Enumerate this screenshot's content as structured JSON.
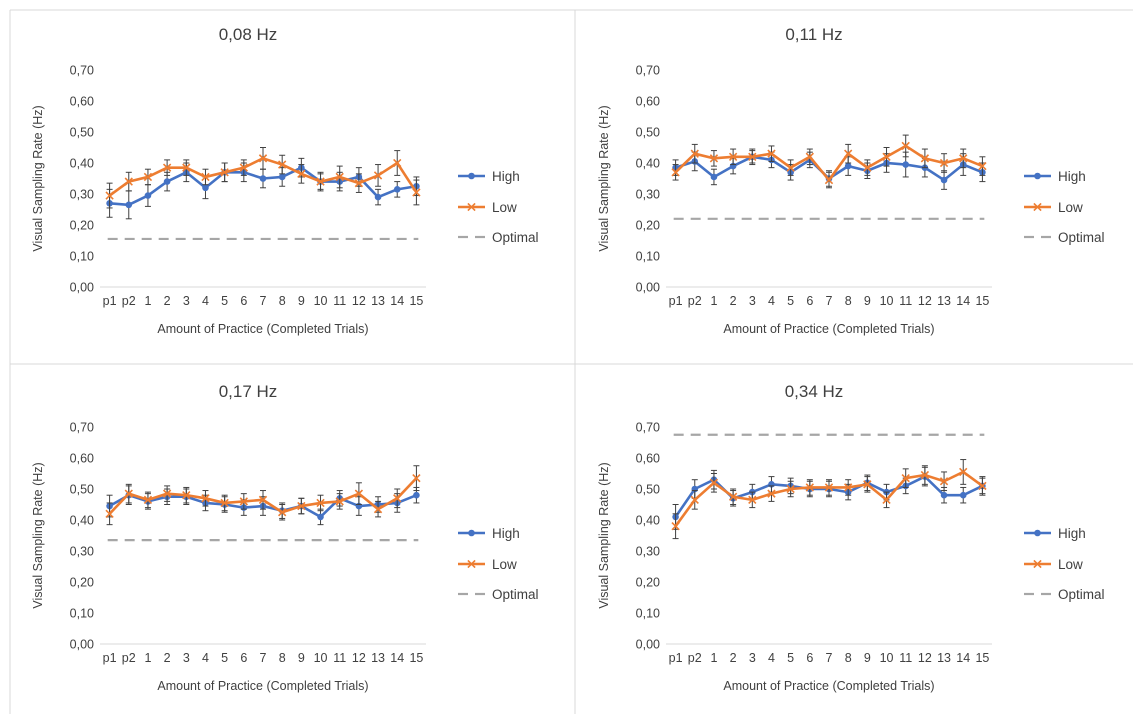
{
  "colors": {
    "high": "#4472C4",
    "low": "#ED7D31",
    "optimal": "#A6A6A6",
    "error_bar": "#404040",
    "divider": "#D9D9D9",
    "text": "#404040"
  },
  "chart_data": [
    {
      "type": "line",
      "title": "0,08 Hz",
      "xlabel": "Amount of Practice (Completed Trials)",
      "ylabel": "Visual Sampling Rate (Hz)",
      "ylim": [
        0,
        0.7
      ],
      "yticks": [
        "0,00",
        "0,10",
        "0,20",
        "0,30",
        "0,40",
        "0,50",
        "0,60",
        "0,70"
      ],
      "categories": [
        "p1",
        "p2",
        "1",
        "2",
        "3",
        "4",
        "5",
        "6",
        "7",
        "8",
        "9",
        "10",
        "11",
        "12",
        "13",
        "14",
        "15"
      ],
      "legend_position": "right",
      "grid": false,
      "series": [
        {
          "name": "High",
          "values": [
            0.27,
            0.265,
            0.295,
            0.34,
            0.37,
            0.32,
            0.37,
            0.37,
            0.35,
            0.355,
            0.385,
            0.34,
            0.34,
            0.355,
            0.29,
            0.315,
            0.325
          ],
          "error": [
            0.045,
            0.045,
            0.035,
            0.03,
            0.03,
            0.035,
            0.03,
            0.03,
            0.03,
            0.03,
            0.03,
            0.025,
            0.03,
            0.03,
            0.025,
            0.025,
            0.03
          ]
        },
        {
          "name": "Low",
          "values": [
            0.295,
            0.34,
            0.355,
            0.385,
            0.385,
            0.355,
            0.37,
            0.385,
            0.415,
            0.395,
            0.365,
            0.34,
            0.355,
            0.335,
            0.36,
            0.4,
            0.305
          ],
          "error": [
            0.04,
            0.03,
            0.025,
            0.025,
            0.025,
            0.025,
            0.03,
            0.025,
            0.035,
            0.03,
            0.03,
            0.03,
            0.035,
            0.03,
            0.035,
            0.04,
            0.04
          ]
        },
        {
          "name": "Optimal",
          "values": [
            0.155,
            0.155,
            0.155,
            0.155,
            0.155,
            0.155,
            0.155,
            0.155,
            0.155,
            0.155,
            0.155,
            0.155,
            0.155,
            0.155,
            0.155,
            0.155,
            0.155
          ]
        }
      ]
    },
    {
      "type": "line",
      "title": "0,11 Hz",
      "xlabel": "Amount of Practice (Completed Trials)",
      "ylabel": "Visual Sampling Rate (Hz)",
      "ylim": [
        0,
        0.7
      ],
      "yticks": [
        "0,00",
        "0,10",
        "0,20",
        "0,30",
        "0,40",
        "0,50",
        "0,60",
        "0,70"
      ],
      "categories": [
        "p1",
        "p2",
        "1",
        "2",
        "3",
        "4",
        "5",
        "6",
        "7",
        "8",
        "9",
        "10",
        "11",
        "12",
        "13",
        "14",
        "15"
      ],
      "legend_position": "right",
      "grid": false,
      "series": [
        {
          "name": "High",
          "values": [
            0.385,
            0.405,
            0.355,
            0.39,
            0.42,
            0.41,
            0.37,
            0.41,
            0.35,
            0.39,
            0.375,
            0.4,
            0.395,
            0.385,
            0.345,
            0.395,
            0.37
          ],
          "error": [
            0.025,
            0.03,
            0.025,
            0.025,
            0.02,
            0.025,
            0.025,
            0.025,
            0.025,
            0.03,
            0.025,
            0.03,
            0.04,
            0.03,
            0.03,
            0.035,
            0.03
          ]
        },
        {
          "name": "Low",
          "values": [
            0.37,
            0.43,
            0.415,
            0.42,
            0.42,
            0.43,
            0.385,
            0.42,
            0.345,
            0.43,
            0.385,
            0.42,
            0.455,
            0.415,
            0.4,
            0.415,
            0.39
          ],
          "error": [
            0.025,
            0.03,
            0.025,
            0.025,
            0.025,
            0.025,
            0.025,
            0.025,
            0.025,
            0.03,
            0.025,
            0.03,
            0.035,
            0.03,
            0.03,
            0.03,
            0.03
          ]
        },
        {
          "name": "Optimal",
          "values": [
            0.22,
            0.22,
            0.22,
            0.22,
            0.22,
            0.22,
            0.22,
            0.22,
            0.22,
            0.22,
            0.22,
            0.22,
            0.22,
            0.22,
            0.22,
            0.22,
            0.22
          ]
        }
      ]
    },
    {
      "type": "line",
      "title": "0,17 Hz",
      "xlabel": "Amount of Practice (Completed Trials)",
      "ylabel": "Visual Sampling Rate (Hz)",
      "ylim": [
        0,
        0.7
      ],
      "yticks": [
        "0,00",
        "0,10",
        "0,20",
        "0,30",
        "0,40",
        "0,50",
        "0,60",
        "0,70"
      ],
      "categories": [
        "p1",
        "p2",
        "1",
        "2",
        "3",
        "4",
        "5",
        "6",
        "7",
        "8",
        "9",
        "10",
        "11",
        "12",
        "13",
        "14",
        "15"
      ],
      "legend_position": "right",
      "grid": false,
      "series": [
        {
          "name": "High",
          "values": [
            0.445,
            0.48,
            0.46,
            0.475,
            0.475,
            0.455,
            0.45,
            0.44,
            0.445,
            0.43,
            0.445,
            0.41,
            0.47,
            0.445,
            0.45,
            0.455,
            0.48
          ],
          "error": [
            0.035,
            0.03,
            0.025,
            0.025,
            0.025,
            0.025,
            0.025,
            0.025,
            0.03,
            0.025,
            0.025,
            0.025,
            0.025,
            0.03,
            0.025,
            0.03,
            0.025
          ]
        },
        {
          "name": "Low",
          "values": [
            0.42,
            0.485,
            0.465,
            0.485,
            0.48,
            0.47,
            0.455,
            0.46,
            0.465,
            0.425,
            0.445,
            0.455,
            0.46,
            0.485,
            0.435,
            0.47,
            0.535
          ],
          "error": [
            0.035,
            0.03,
            0.025,
            0.025,
            0.025,
            0.025,
            0.025,
            0.025,
            0.03,
            0.025,
            0.025,
            0.025,
            0.025,
            0.035,
            0.025,
            0.03,
            0.04
          ]
        },
        {
          "name": "Optimal",
          "values": [
            0.335,
            0.335,
            0.335,
            0.335,
            0.335,
            0.335,
            0.335,
            0.335,
            0.335,
            0.335,
            0.335,
            0.335,
            0.335,
            0.335,
            0.335,
            0.335,
            0.335
          ]
        }
      ]
    },
    {
      "type": "line",
      "title": "0,34 Hz",
      "xlabel": "Amount of Practice (Completed Trials)",
      "ylabel": "Visual Sampling Rate (Hz)",
      "ylim": [
        0,
        0.7
      ],
      "yticks": [
        "0,00",
        "0,10",
        "0,20",
        "0,30",
        "0,40",
        "0,50",
        "0,60",
        "0,70"
      ],
      "categories": [
        "p1",
        "p2",
        "1",
        "2",
        "3",
        "4",
        "5",
        "6",
        "7",
        "8",
        "9",
        "10",
        "11",
        "12",
        "13",
        "14",
        "15"
      ],
      "legend_position": "right",
      "grid": false,
      "series": [
        {
          "name": "High",
          "values": [
            0.41,
            0.5,
            0.53,
            0.47,
            0.49,
            0.515,
            0.51,
            0.5,
            0.5,
            0.49,
            0.52,
            0.49,
            0.51,
            0.54,
            0.48,
            0.48,
            0.51
          ],
          "error": [
            0.04,
            0.03,
            0.03,
            0.025,
            0.025,
            0.025,
            0.025,
            0.025,
            0.025,
            0.025,
            0.025,
            0.025,
            0.025,
            0.03,
            0.025,
            0.025,
            0.025
          ]
        },
        {
          "name": "Low",
          "values": [
            0.38,
            0.465,
            0.52,
            0.475,
            0.465,
            0.485,
            0.5,
            0.505,
            0.505,
            0.505,
            0.515,
            0.465,
            0.535,
            0.545,
            0.525,
            0.555,
            0.51
          ],
          "error": [
            0.04,
            0.03,
            0.03,
            0.025,
            0.025,
            0.025,
            0.025,
            0.025,
            0.025,
            0.025,
            0.025,
            0.025,
            0.03,
            0.03,
            0.03,
            0.04,
            0.03
          ]
        },
        {
          "name": "Optimal",
          "values": [
            0.675,
            0.675,
            0.675,
            0.675,
            0.675,
            0.675,
            0.675,
            0.675,
            0.675,
            0.675,
            0.675,
            0.675,
            0.675,
            0.675,
            0.675,
            0.675,
            0.675
          ]
        }
      ]
    }
  ]
}
